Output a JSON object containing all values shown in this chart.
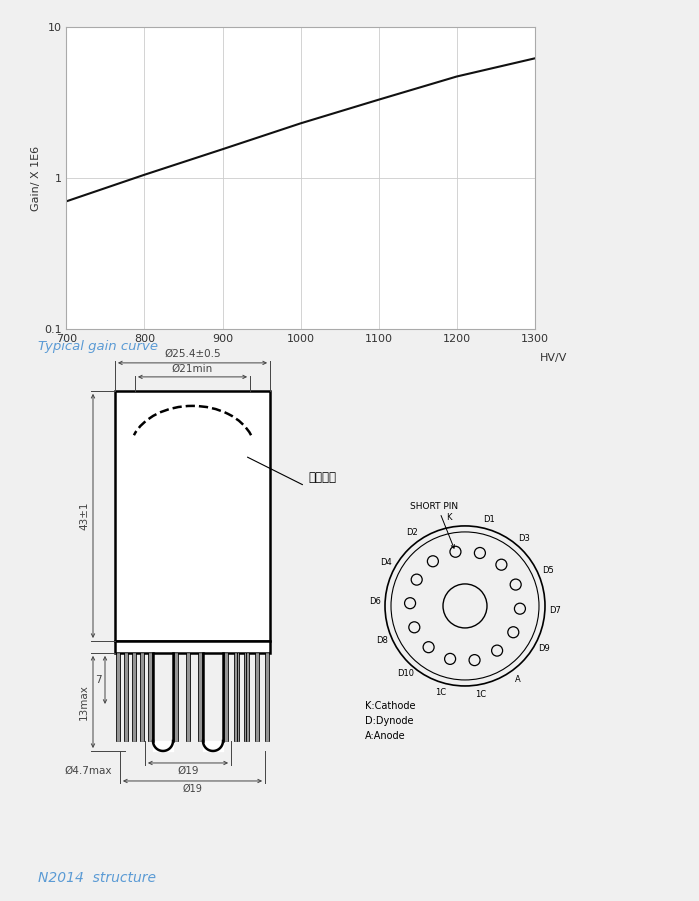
{
  "bg_color": "#f0f0f0",
  "plot_bg_color": "#ffffff",
  "gain_curve": {
    "hv_values": [
      700,
      800,
      900,
      1000,
      1100,
      1200,
      1300
    ],
    "gain_values": [
      0.7,
      1.05,
      1.55,
      2.3,
      3.3,
      4.7,
      6.2
    ],
    "line_color": "#111111",
    "line_width": 1.5
  },
  "xlabel": "HV/V",
  "ylabel": "Gain/ X 1E6",
  "xlim": [
    700,
    1300
  ],
  "ylim_log": [
    0.1,
    10
  ],
  "xticks": [
    700,
    800,
    900,
    1000,
    1100,
    1200,
    1300
  ],
  "yticks": [
    0.1,
    1,
    10
  ],
  "grid_color": "#cccccc",
  "typical_gain_label": "Typical gain curve",
  "typical_gain_color": "#5b9bd5",
  "n2014_label": "N2014  structure",
  "n2014_color": "#5b9bd5",
  "diagram": {
    "pins_label": "光电阴极",
    "dim_outer": "Ø25.4±0.5",
    "dim_inner": "Ø21min",
    "dim_height": "43±1",
    "dim_13max": "13max",
    "dim_7": "7",
    "dim_d47": "Ø4.7max",
    "dim_d19": "Ø19",
    "short_pin_label": "SHORT PIN",
    "outer_pin_labels": [
      "K",
      "D1",
      "D3",
      "D5",
      "D7",
      "D9",
      "A",
      "1C",
      "1C",
      "D10",
      "D8",
      "D6",
      "D4",
      "D2"
    ],
    "legend": "K:Cathode\nD:Dynode\nA:Anode"
  }
}
